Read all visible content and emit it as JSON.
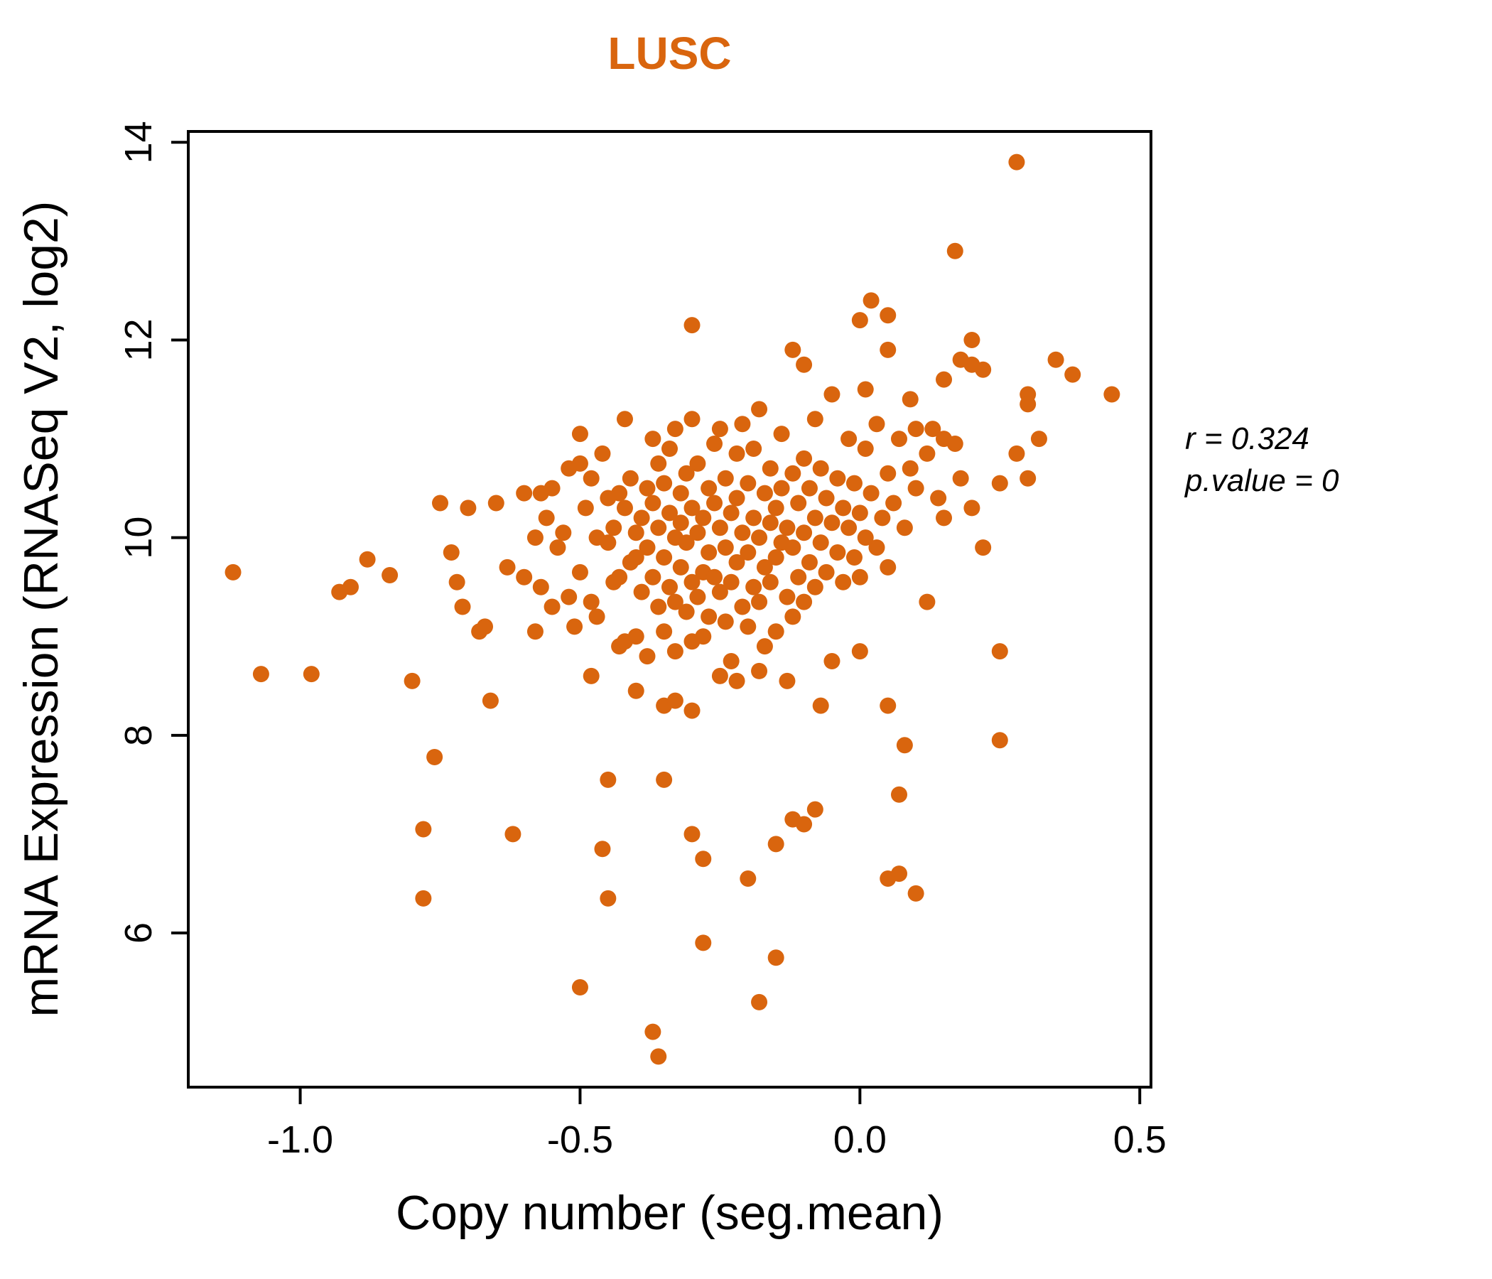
{
  "figure": {
    "title": "LUSC",
    "x_axis_label": "Copy number (seg.mean)",
    "y_axis_label": "mRNA Expression (RNASeq V2, log2)",
    "annotation": {
      "line1": "r = 0.324",
      "line2": "p.value = 0"
    },
    "colors": {
      "accent": "#D9650E",
      "point": "#D9650E",
      "axis": "#000000",
      "background": "#ffffff"
    }
  },
  "chart_data": {
    "type": "scatter",
    "title": "LUSC",
    "xlabel": "Copy number (seg.mean)",
    "ylabel": "mRNA Expression (RNASeq V2, log2)",
    "xlim": [
      -1.2,
      0.52
    ],
    "ylim": [
      4.44,
      14.11
    ],
    "grid": false,
    "legend": "none",
    "correlation_r": 0.324,
    "p_value": 0,
    "xticks": [
      {
        "value": -1.0,
        "label": "-1.0"
      },
      {
        "value": -0.5,
        "label": "-0.5"
      },
      {
        "value": 0.0,
        "label": "0.0"
      },
      {
        "value": 0.5,
        "label": "0.5"
      }
    ],
    "yticks": [
      {
        "value": 6,
        "label": "6"
      },
      {
        "value": 8,
        "label": "8"
      },
      {
        "value": 10,
        "label": "10"
      },
      {
        "value": 12,
        "label": "12"
      },
      {
        "value": 14,
        "label": "14"
      }
    ],
    "points": [
      [
        -1.12,
        9.65
      ],
      [
        -1.07,
        8.62
      ],
      [
        -0.98,
        8.62
      ],
      [
        -0.93,
        9.45
      ],
      [
        -0.91,
        9.5
      ],
      [
        -0.88,
        9.78
      ],
      [
        -0.84,
        9.62
      ],
      [
        -0.8,
        8.55
      ],
      [
        -0.78,
        7.05
      ],
      [
        -0.78,
        6.35
      ],
      [
        -0.76,
        7.78
      ],
      [
        -0.75,
        10.35
      ],
      [
        -0.73,
        9.85
      ],
      [
        -0.72,
        9.55
      ],
      [
        -0.71,
        9.3
      ],
      [
        -0.7,
        10.3
      ],
      [
        -0.68,
        9.05
      ],
      [
        -0.67,
        9.1
      ],
      [
        -0.66,
        8.35
      ],
      [
        -0.65,
        10.35
      ],
      [
        -0.63,
        9.7
      ],
      [
        -0.62,
        7.0
      ],
      [
        -0.6,
        10.45
      ],
      [
        -0.6,
        9.6
      ],
      [
        -0.58,
        9.05
      ],
      [
        -0.57,
        10.45
      ],
      [
        -0.58,
        10.0
      ],
      [
        -0.57,
        9.5
      ],
      [
        -0.56,
        10.2
      ],
      [
        -0.55,
        9.3
      ],
      [
        -0.5,
        5.45
      ],
      [
        -0.46,
        6.85
      ],
      [
        -0.45,
        6.35
      ],
      [
        -0.45,
        7.55
      ],
      [
        -0.37,
        5.0
      ],
      [
        -0.36,
        4.75
      ],
      [
        -0.35,
        7.55
      ],
      [
        -0.3,
        12.15
      ],
      [
        -0.3,
        7.0
      ],
      [
        -0.28,
        6.75
      ],
      [
        -0.28,
        5.9
      ],
      [
        -0.2,
        6.55
      ],
      [
        -0.18,
        5.3
      ],
      [
        -0.15,
        5.75
      ],
      [
        -0.15,
        6.9
      ],
      [
        -0.12,
        11.9
      ],
      [
        -0.12,
        7.15
      ],
      [
        -0.1,
        11.75
      ],
      [
        -0.1,
        7.1
      ],
      [
        -0.08,
        7.25
      ],
      [
        0.0,
        12.2
      ],
      [
        0.02,
        12.4
      ],
      [
        0.05,
        12.25
      ],
      [
        0.05,
        11.9
      ],
      [
        0.05,
        8.3
      ],
      [
        0.05,
        6.55
      ],
      [
        0.07,
        7.4
      ],
      [
        0.07,
        6.6
      ],
      [
        0.08,
        7.9
      ],
      [
        0.1,
        6.4
      ],
      [
        0.1,
        11.1
      ],
      [
        0.12,
        9.35
      ],
      [
        0.17,
        12.9
      ],
      [
        0.15,
        11.6
      ],
      [
        0.18,
        11.8
      ],
      [
        0.2,
        12.0
      ],
      [
        0.2,
        11.75
      ],
      [
        0.22,
        11.7
      ],
      [
        0.25,
        8.85
      ],
      [
        0.25,
        7.95
      ],
      [
        0.28,
        13.8
      ],
      [
        0.3,
        11.45
      ],
      [
        0.3,
        11.35
      ],
      [
        0.35,
        11.8
      ],
      [
        0.38,
        11.65
      ],
      [
        0.45,
        11.45
      ],
      [
        0.2,
        10.3
      ],
      [
        0.25,
        10.55
      ],
      [
        0.28,
        10.85
      ],
      [
        0.3,
        10.6
      ],
      [
        0.32,
        11.0
      ],
      [
        0.22,
        9.9
      ],
      [
        0.01,
        11.5
      ],
      [
        0.09,
        11.4
      ],
      [
        0.13,
        11.1
      ],
      [
        -0.48,
        8.6
      ],
      [
        -0.35,
        8.3
      ],
      [
        -0.33,
        8.35
      ],
      [
        -0.3,
        8.25
      ],
      [
        -0.25,
        8.6
      ],
      [
        -0.22,
        8.55
      ],
      [
        -0.18,
        8.65
      ],
      [
        -0.13,
        8.55
      ],
      [
        -0.07,
        8.3
      ],
      [
        0.0,
        8.85
      ],
      [
        -0.05,
        8.75
      ],
      [
        -0.55,
        10.5
      ],
      [
        -0.54,
        9.9
      ],
      [
        -0.53,
        10.05
      ],
      [
        -0.52,
        9.4
      ],
      [
        -0.52,
        10.7
      ],
      [
        -0.51,
        9.1
      ],
      [
        -0.5,
        10.75
      ],
      [
        -0.5,
        11.05
      ],
      [
        -0.5,
        9.65
      ],
      [
        -0.49,
        10.3
      ],
      [
        -0.48,
        10.6
      ],
      [
        -0.48,
        9.35
      ],
      [
        -0.47,
        10.0
      ],
      [
        -0.47,
        9.2
      ],
      [
        -0.46,
        10.85
      ],
      [
        -0.45,
        9.95
      ],
      [
        -0.45,
        10.4
      ],
      [
        -0.44,
        9.55
      ],
      [
        -0.44,
        10.1
      ],
      [
        -0.43,
        10.45
      ],
      [
        -0.43,
        9.6
      ],
      [
        -0.43,
        8.9
      ],
      [
        -0.42,
        10.3
      ],
      [
        -0.42,
        8.95
      ],
      [
        -0.42,
        11.2
      ],
      [
        -0.41,
        9.75
      ],
      [
        -0.41,
        10.6
      ],
      [
        -0.4,
        10.05
      ],
      [
        -0.4,
        9.8
      ],
      [
        -0.4,
        9.0
      ],
      [
        -0.4,
        8.45
      ],
      [
        -0.39,
        10.2
      ],
      [
        -0.39,
        9.45
      ],
      [
        -0.38,
        10.5
      ],
      [
        -0.38,
        9.9
      ],
      [
        -0.38,
        8.8
      ],
      [
        -0.37,
        10.35
      ],
      [
        -0.37,
        9.6
      ],
      [
        -0.37,
        11.0
      ],
      [
        -0.36,
        10.1
      ],
      [
        -0.36,
        9.3
      ],
      [
        -0.36,
        10.75
      ],
      [
        -0.35,
        10.55
      ],
      [
        -0.35,
        9.8
      ],
      [
        -0.35,
        9.05
      ],
      [
        -0.34,
        10.25
      ],
      [
        -0.34,
        9.5
      ],
      [
        -0.34,
        10.9
      ],
      [
        -0.33,
        10.0
      ],
      [
        -0.33,
        9.35
      ],
      [
        -0.33,
        8.85
      ],
      [
        -0.33,
        11.1
      ],
      [
        -0.32,
        10.45
      ],
      [
        -0.32,
        9.7
      ],
      [
        -0.32,
        10.15
      ],
      [
        -0.31,
        9.95
      ],
      [
        -0.31,
        9.25
      ],
      [
        -0.31,
        10.65
      ],
      [
        -0.3,
        10.3
      ],
      [
        -0.3,
        9.55
      ],
      [
        -0.3,
        8.95
      ],
      [
        -0.3,
        11.2
      ],
      [
        -0.29,
        10.05
      ],
      [
        -0.29,
        9.4
      ],
      [
        -0.29,
        10.75
      ],
      [
        -0.28,
        10.2
      ],
      [
        -0.28,
        9.65
      ],
      [
        -0.28,
        9.0
      ],
      [
        -0.27,
        10.5
      ],
      [
        -0.27,
        9.85
      ],
      [
        -0.27,
        9.2
      ],
      [
        -0.26,
        10.35
      ],
      [
        -0.26,
        9.6
      ],
      [
        -0.26,
        10.95
      ],
      [
        -0.25,
        10.1
      ],
      [
        -0.25,
        9.45
      ],
      [
        -0.25,
        11.1
      ],
      [
        -0.24,
        10.6
      ],
      [
        -0.24,
        9.9
      ],
      [
        -0.24,
        9.15
      ],
      [
        -0.23,
        10.25
      ],
      [
        -0.23,
        9.55
      ],
      [
        -0.23,
        8.75
      ],
      [
        -0.22,
        10.4
      ],
      [
        -0.22,
        9.75
      ],
      [
        -0.22,
        10.85
      ],
      [
        -0.21,
        10.05
      ],
      [
        -0.21,
        9.3
      ],
      [
        -0.21,
        11.15
      ],
      [
        -0.2,
        10.55
      ],
      [
        -0.2,
        9.85
      ],
      [
        -0.2,
        9.1
      ],
      [
        -0.19,
        10.2
      ],
      [
        -0.19,
        9.5
      ],
      [
        -0.19,
        10.9
      ],
      [
        -0.18,
        10.0
      ],
      [
        -0.18,
        9.35
      ],
      [
        -0.18,
        11.3
      ],
      [
        -0.17,
        10.45
      ],
      [
        -0.17,
        9.7
      ],
      [
        -0.17,
        8.9
      ],
      [
        -0.16,
        10.15
      ],
      [
        -0.16,
        9.55
      ],
      [
        -0.16,
        10.7
      ],
      [
        -0.15,
        10.3
      ],
      [
        -0.15,
        9.8
      ],
      [
        -0.15,
        9.05
      ],
      [
        -0.14,
        10.5
      ],
      [
        -0.14,
        9.95
      ],
      [
        -0.14,
        11.05
      ],
      [
        -0.13,
        10.1
      ],
      [
        -0.13,
        9.4
      ],
      [
        -0.12,
        10.65
      ],
      [
        -0.12,
        9.9
      ],
      [
        -0.12,
        9.2
      ],
      [
        -0.11,
        10.35
      ],
      [
        -0.11,
        9.6
      ],
      [
        -0.1,
        10.8
      ],
      [
        -0.1,
        10.05
      ],
      [
        -0.1,
        9.35
      ],
      [
        -0.09,
        10.5
      ],
      [
        -0.09,
        9.75
      ],
      [
        -0.08,
        10.2
      ],
      [
        -0.08,
        9.5
      ],
      [
        -0.08,
        11.2
      ],
      [
        -0.07,
        10.7
      ],
      [
        -0.07,
        9.95
      ],
      [
        -0.06,
        10.4
      ],
      [
        -0.06,
        9.65
      ],
      [
        -0.05,
        11.45
      ],
      [
        -0.05,
        10.15
      ],
      [
        -0.04,
        10.6
      ],
      [
        -0.04,
        9.85
      ],
      [
        -0.03,
        10.3
      ],
      [
        -0.03,
        9.55
      ],
      [
        -0.02,
        11.0
      ],
      [
        -0.02,
        10.1
      ],
      [
        -0.01,
        10.55
      ],
      [
        -0.01,
        9.8
      ],
      [
        0.0,
        10.25
      ],
      [
        0.0,
        9.6
      ],
      [
        0.01,
        10.9
      ],
      [
        0.01,
        10.0
      ],
      [
        0.02,
        10.45
      ],
      [
        0.03,
        9.9
      ],
      [
        0.03,
        11.15
      ],
      [
        0.04,
        10.2
      ],
      [
        0.05,
        10.65
      ],
      [
        0.05,
        9.7
      ],
      [
        0.06,
        10.35
      ],
      [
        0.07,
        11.0
      ],
      [
        0.08,
        10.1
      ],
      [
        0.09,
        10.7
      ],
      [
        0.1,
        10.5
      ],
      [
        0.12,
        10.85
      ],
      [
        0.14,
        10.4
      ],
      [
        0.15,
        11.0
      ],
      [
        0.15,
        10.2
      ],
      [
        0.17,
        10.95
      ],
      [
        0.18,
        10.6
      ]
    ]
  }
}
